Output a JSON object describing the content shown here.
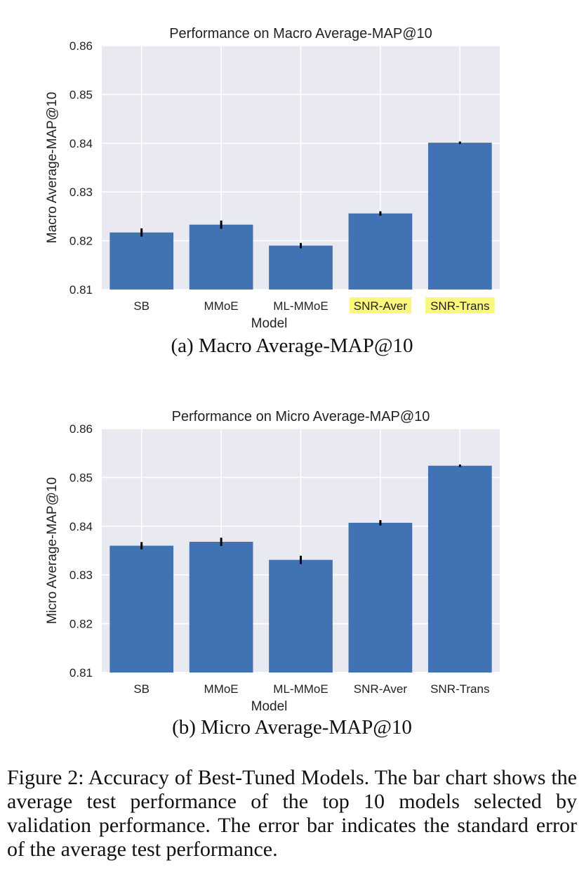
{
  "chart_data": [
    {
      "type": "bar",
      "title": "Performance on Macro Average-MAP@10",
      "xlabel": "Model",
      "ylabel": "Macro Average-MAP@10",
      "categories": [
        "SB",
        "MMoE",
        "ML-MMoE",
        "SNR-Aver",
        "SNR-Trans"
      ],
      "highlighted_categories": [
        "SNR-Aver",
        "SNR-Trans"
      ],
      "values": [
        0.8217,
        0.8233,
        0.819,
        0.8256,
        0.8401
      ],
      "errors": [
        0.0007,
        0.0007,
        0.0004,
        0.0003,
        0.0001
      ],
      "ylim": [
        0.81,
        0.86
      ],
      "yticks": [
        "0.81",
        "0.82",
        "0.83",
        "0.84",
        "0.85",
        "0.86"
      ],
      "grid": true
    },
    {
      "type": "bar",
      "title": "Performance on Micro Average-MAP@10",
      "xlabel": "Model",
      "ylabel": "Micro Average-MAP@10",
      "categories": [
        "SB",
        "MMoE",
        "ML-MMoE",
        "SNR-Aver",
        "SNR-Trans"
      ],
      "values": [
        0.836,
        0.8368,
        0.8331,
        0.8407,
        0.8524
      ],
      "errors": [
        0.0006,
        0.0007,
        0.0007,
        0.0004,
        0.0001
      ],
      "ylim": [
        0.81,
        0.86
      ],
      "yticks": [
        "0.81",
        "0.82",
        "0.83",
        "0.84",
        "0.85",
        "0.86"
      ],
      "grid": true
    }
  ],
  "colors": {
    "bar": "#4172b4",
    "plot_background": "#e9e9f1",
    "gridline": "#ffffff",
    "highlight": "#fbf77c",
    "error_bar": "#000000"
  },
  "subcaptions": [
    "(a) Macro Average-MAP@10",
    "(b) Micro Average-MAP@10"
  ],
  "figure_caption": "Figure 2: Accuracy of Best-Tuned Models. The bar chart shows the average test performance of the top 10 models selected by validation performance. The error bar indicates the standard error of the average test performance."
}
